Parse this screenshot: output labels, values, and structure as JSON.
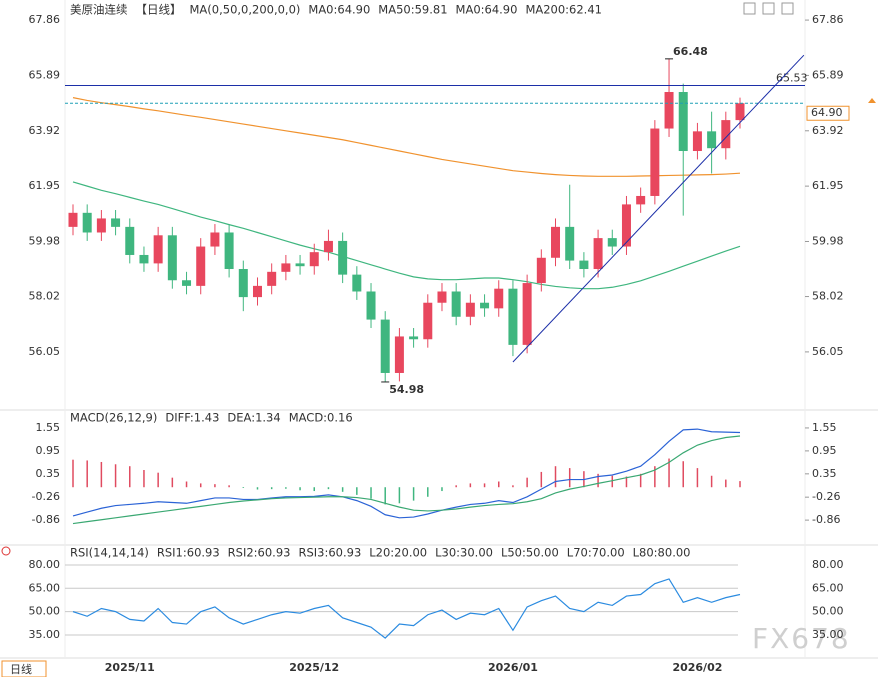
{
  "chart_data": [
    {
      "type": "candlestick",
      "title": "美原油连续",
      "period": "【日线】",
      "indicator": "MA(0,50,0,200,0,0)",
      "categories": [
        null,
        null,
        null,
        null,
        "2025/11",
        null,
        null,
        null,
        null,
        null,
        null,
        null,
        null,
        null,
        null,
        null,
        null,
        "2025/12",
        null,
        null,
        null,
        null,
        null,
        null,
        null,
        null,
        null,
        null,
        null,
        null,
        null,
        "2026/01",
        null,
        null,
        null,
        null,
        null,
        null,
        null,
        null,
        null,
        null,
        null,
        null,
        "2026/02",
        null,
        null,
        null
      ],
      "open": [
        60.5,
        61.0,
        60.3,
        60.8,
        60.5,
        59.5,
        59.2,
        60.2,
        58.6,
        58.4,
        59.8,
        60.3,
        59.0,
        58.0,
        58.4,
        58.9,
        59.2,
        59.1,
        59.6,
        60.0,
        58.8,
        58.2,
        57.2,
        55.3,
        56.6,
        56.5,
        57.8,
        58.2,
        57.3,
        57.8,
        57.6,
        58.3,
        56.3,
        58.5,
        59.4,
        60.5,
        59.3,
        59.0,
        60.1,
        59.8,
        61.3,
        61.6,
        64.0,
        65.3,
        63.2,
        63.9,
        63.3,
        64.3
      ],
      "high": [
        61.3,
        61.3,
        61.1,
        61.1,
        60.8,
        59.8,
        60.5,
        60.5,
        58.9,
        60.1,
        60.6,
        60.6,
        59.3,
        58.7,
        59.2,
        59.5,
        59.5,
        59.9,
        60.4,
        60.3,
        59.1,
        58.5,
        57.5,
        56.9,
        56.9,
        58.1,
        58.5,
        58.5,
        58.1,
        58.1,
        58.6,
        58.6,
        58.8,
        59.7,
        60.8,
        62.0,
        59.6,
        60.4,
        60.4,
        61.6,
        61.9,
        64.3,
        66.48,
        65.6,
        64.2,
        64.6,
        64.6,
        65.1
      ],
      "low": [
        60.2,
        60.0,
        60.0,
        60.2,
        59.2,
        58.9,
        58.9,
        58.3,
        58.1,
        58.1,
        59.5,
        58.7,
        57.5,
        57.7,
        58.1,
        58.6,
        58.8,
        58.8,
        59.3,
        58.5,
        57.9,
        56.9,
        54.98,
        55.0,
        56.2,
        56.2,
        57.5,
        57.0,
        57.0,
        57.3,
        57.3,
        55.9,
        56.0,
        58.2,
        59.1,
        59.0,
        58.7,
        58.7,
        59.5,
        59.5,
        61.0,
        61.3,
        63.7,
        60.9,
        62.9,
        62.4,
        62.9,
        64.0
      ],
      "close": [
        61.0,
        60.3,
        60.8,
        60.5,
        59.5,
        59.2,
        60.2,
        58.6,
        58.4,
        59.8,
        60.3,
        59.0,
        58.0,
        58.4,
        58.9,
        59.2,
        59.1,
        59.6,
        60.0,
        58.8,
        58.2,
        57.2,
        55.3,
        56.6,
        56.5,
        57.8,
        58.2,
        57.3,
        57.8,
        57.6,
        58.3,
        56.3,
        58.5,
        59.4,
        60.5,
        59.3,
        59.0,
        60.1,
        59.8,
        61.3,
        61.6,
        64.0,
        65.3,
        63.2,
        63.9,
        63.3,
        64.3,
        64.9
      ],
      "up_color": "#e8475e",
      "down_color": "#3fb67f",
      "series": [
        {
          "name": "MA0:64.90",
          "color": "#3d6fd6"
        },
        {
          "name": "MA50:59.81",
          "color": "#3fb67f",
          "values": [
            62.1,
            61.95,
            61.8,
            61.68,
            61.55,
            61.42,
            61.3,
            61.15,
            61.0,
            60.85,
            60.72,
            60.58,
            60.45,
            60.3,
            60.15,
            60.0,
            59.85,
            59.72,
            59.6,
            59.45,
            59.3,
            59.15,
            59.0,
            58.85,
            58.72,
            58.65,
            58.62,
            58.62,
            58.65,
            58.68,
            58.68,
            58.62,
            58.55,
            58.45,
            58.38,
            58.33,
            58.3,
            58.3,
            58.35,
            58.45,
            58.58,
            58.75,
            58.92,
            59.1,
            59.28,
            59.46,
            59.64,
            59.81
          ]
        },
        {
          "name": "MA0:64.90",
          "color": "#4fb0e8"
        },
        {
          "name": "MA200:62.41",
          "color": "#f0922e",
          "values": [
            65.1,
            65.0,
            64.92,
            64.85,
            64.78,
            64.7,
            64.63,
            64.55,
            64.47,
            64.4,
            64.32,
            64.24,
            64.16,
            64.08,
            64.0,
            63.92,
            63.84,
            63.76,
            63.68,
            63.6,
            63.5,
            63.4,
            63.3,
            63.2,
            63.1,
            63.0,
            62.9,
            62.82,
            62.74,
            62.66,
            62.58,
            62.5,
            62.45,
            62.4,
            62.36,
            62.33,
            62.31,
            62.3,
            62.3,
            62.3,
            62.31,
            62.32,
            62.33,
            62.34,
            62.35,
            62.36,
            62.38,
            62.41
          ]
        }
      ],
      "reference_lines": [
        {
          "value": 65.53,
          "label": "65.53",
          "color": "#1c2fa8",
          "style": "solid"
        },
        {
          "value": 64.9,
          "label": "64.90",
          "color": "#1f9fb5",
          "style": "dashed",
          "tag_color": "#f0922e"
        }
      ],
      "annotations": [
        {
          "index": 42,
          "value": 66.48,
          "label": "66.48",
          "color": "#e8475e"
        },
        {
          "index": 22,
          "value": 54.98,
          "label": "54.98",
          "color": "#3fb67f"
        }
      ],
      "trendline": {
        "start": [
          31,
          55.69
        ],
        "end": [
          51.5,
          66.61
        ],
        "color": "#1c2fa8"
      },
      "ylim": [
        54.16,
        68.29
      ],
      "yticks": [
        56.05,
        58.02,
        59.98,
        61.95,
        63.92,
        65.89,
        67.86
      ],
      "grid": false,
      "period_tab": "日线",
      "watermark": "FX678"
    },
    {
      "type": "macd",
      "label": "MACD(26,12,9)",
      "ylim": [
        -1.38,
        1.81
      ],
      "yticks": [
        -0.86,
        -0.26,
        0.35,
        0.95,
        1.55
      ],
      "grid": false,
      "bar_colors": [
        "#e04a5f",
        "#3fb67f"
      ],
      "series": [
        {
          "name": "DIFF:1.43",
          "color": "#2b63d6",
          "kind": "line",
          "values": [
            -0.75,
            -0.65,
            -0.55,
            -0.48,
            -0.45,
            -0.42,
            -0.38,
            -0.4,
            -0.42,
            -0.35,
            -0.28,
            -0.28,
            -0.32,
            -0.32,
            -0.28,
            -0.25,
            -0.25,
            -0.24,
            -0.2,
            -0.25,
            -0.35,
            -0.5,
            -0.72,
            -0.8,
            -0.78,
            -0.7,
            -0.6,
            -0.52,
            -0.45,
            -0.42,
            -0.35,
            -0.4,
            -0.25,
            -0.05,
            0.15,
            0.2,
            0.2,
            0.28,
            0.32,
            0.42,
            0.55,
            0.85,
            1.2,
            1.5,
            1.52,
            1.45,
            1.44,
            1.43
          ]
        },
        {
          "name": "DEA:1.34",
          "color": "#3aa872",
          "kind": "line",
          "values": [
            -0.95,
            -0.9,
            -0.85,
            -0.8,
            -0.75,
            -0.7,
            -0.65,
            -0.6,
            -0.55,
            -0.5,
            -0.45,
            -0.4,
            -0.36,
            -0.33,
            -0.3,
            -0.28,
            -0.27,
            -0.26,
            -0.25,
            -0.25,
            -0.27,
            -0.32,
            -0.42,
            -0.52,
            -0.6,
            -0.62,
            -0.6,
            -0.57,
            -0.52,
            -0.48,
            -0.45,
            -0.43,
            -0.38,
            -0.3,
            -0.15,
            -0.05,
            0.02,
            0.1,
            0.17,
            0.25,
            0.32,
            0.45,
            0.65,
            0.9,
            1.1,
            1.22,
            1.3,
            1.34
          ]
        },
        {
          "name": "MACD:0.16",
          "color": "#4fb0e8",
          "kind": "histogram",
          "values": [
            0.72,
            0.7,
            0.66,
            0.6,
            0.55,
            0.45,
            0.38,
            0.25,
            0.15,
            0.1,
            0.08,
            0.05,
            -0.02,
            -0.06,
            -0.05,
            -0.04,
            -0.08,
            -0.1,
            -0.05,
            -0.12,
            -0.2,
            -0.3,
            -0.45,
            -0.42,
            -0.35,
            -0.25,
            -0.1,
            0.05,
            0.1,
            0.1,
            0.15,
            0.05,
            0.25,
            0.4,
            0.55,
            0.5,
            0.42,
            0.35,
            0.3,
            0.28,
            0.35,
            0.55,
            0.75,
            0.68,
            0.5,
            0.3,
            0.2,
            0.16
          ]
        }
      ]
    },
    {
      "type": "line",
      "label": "RSI(14,14,14)",
      "ylim": [
        22.1,
        87.7
      ],
      "grid": true,
      "yticks": [
        {
          "value": 35,
          "label": "35.00"
        },
        {
          "value": 50,
          "label": "50.00"
        },
        {
          "value": 65,
          "label": "65.00"
        },
        {
          "value": 80,
          "label": "80.00"
        }
      ],
      "series": [
        {
          "name": "RSI1:60.93",
          "color": "#2b8be0",
          "values": [
            50,
            47,
            52,
            50,
            45,
            44,
            52,
            43,
            42,
            50,
            53,
            46,
            42,
            45,
            48,
            50,
            49,
            52,
            54,
            46,
            43,
            40,
            33,
            42,
            41,
            48,
            51,
            45,
            49,
            48,
            52,
            38,
            53,
            57,
            60,
            52,
            50,
            56,
            54,
            60,
            61,
            68,
            71,
            56,
            59,
            56,
            59,
            61
          ]
        },
        {
          "name": "RSI2:60.93",
          "color": "#3aa872"
        },
        {
          "name": "RSI3:60.93",
          "color": "#4fb0e8"
        }
      ],
      "levels": [
        "L20:20.00",
        "L30:30.00",
        "L50:50.00",
        "L70:70.00",
        "L80:80.00"
      ],
      "level_color": "#b5b5b5"
    }
  ]
}
